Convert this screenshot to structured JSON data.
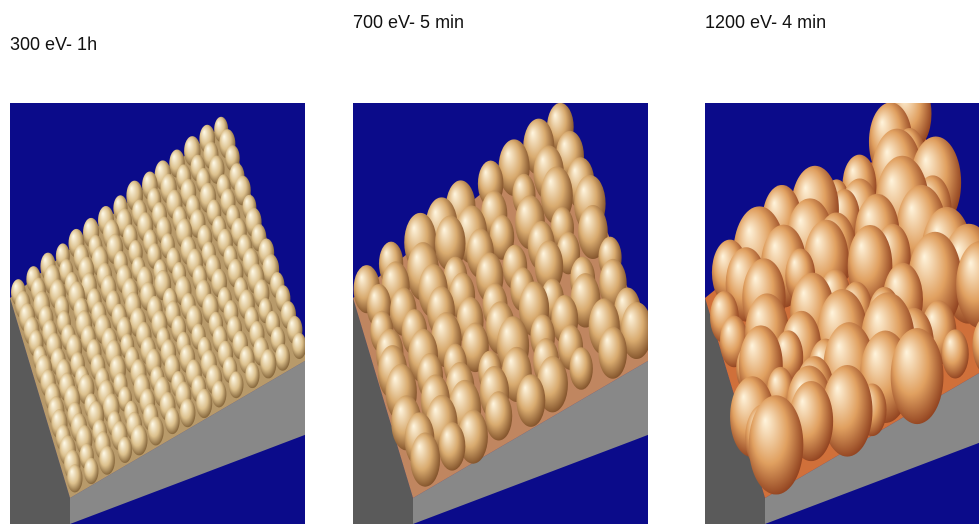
{
  "panels": [
    {
      "label": "300 eV- 1h"
    },
    {
      "label": "700 eV- 5 min"
    },
    {
      "label": "1200 eV- 4 min"
    }
  ]
}
